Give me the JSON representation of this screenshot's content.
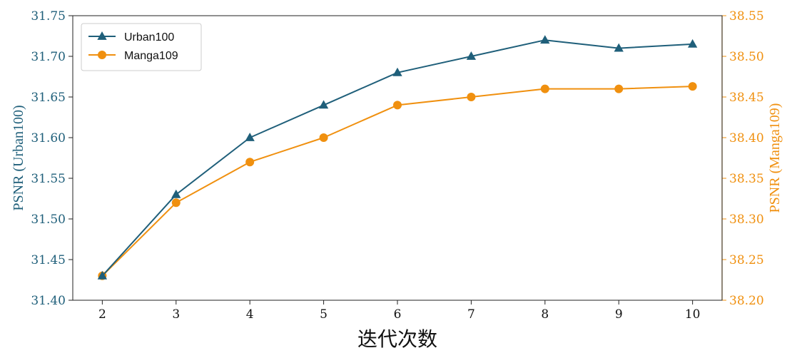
{
  "chart_data": {
    "type": "line",
    "x": [
      2,
      3,
      4,
      5,
      6,
      7,
      8,
      9,
      10
    ],
    "xlabel": "迭代次数",
    "xticks": [
      "2",
      "3",
      "4",
      "5",
      "6",
      "7",
      "8",
      "9",
      "10"
    ],
    "xlim": [
      1.6,
      10.4
    ],
    "left_axis": {
      "label": "PSNR (Urban100)",
      "ylim": [
        31.4,
        31.75
      ],
      "ticks": [
        "31.40",
        "31.45",
        "31.50",
        "31.55",
        "31.60",
        "31.65",
        "31.70",
        "31.75"
      ],
      "color": "#1f5f7a"
    },
    "right_axis": {
      "label": "PSNR (Manga109)",
      "ylim": [
        38.2,
        38.55
      ],
      "ticks": [
        "38.20",
        "38.25",
        "38.30",
        "38.35",
        "38.40",
        "38.45",
        "38.50",
        "38.55"
      ],
      "color": "#f0900f"
    },
    "series": [
      {
        "name": "Urban100",
        "axis": "left",
        "marker": "triangle",
        "color": "#1f5f7a",
        "values": [
          31.43,
          31.53,
          31.6,
          31.64,
          31.68,
          31.7,
          31.72,
          31.71,
          31.715
        ]
      },
      {
        "name": "Manga109",
        "axis": "right",
        "marker": "circle",
        "color": "#f0900f",
        "values": [
          38.23,
          38.32,
          38.37,
          38.4,
          38.44,
          38.45,
          38.46,
          38.46,
          38.463
        ]
      }
    ],
    "legend": "top-left",
    "grid": false
  }
}
